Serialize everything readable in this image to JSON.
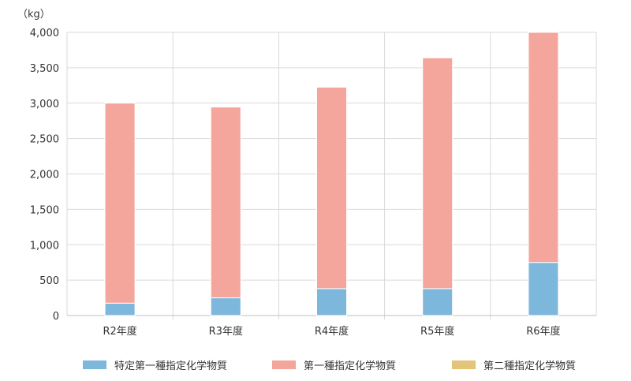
{
  "chart_data": {
    "type": "bar",
    "stacked": true,
    "unit_label": "（kg）",
    "categories": [
      "R2年度",
      "R3年度",
      "R4年度",
      "R5年度",
      "R6年度"
    ],
    "series": [
      {
        "name": "特定第一種指定化学物質",
        "color": "#7db7dc",
        "values": [
          175,
          250,
          380,
          380,
          750
        ]
      },
      {
        "name": "第一種指定化学物質",
        "color": "#f4a69c",
        "values": [
          2825,
          2695,
          2845,
          3260,
          3250
        ]
      },
      {
        "name": "第二種指定化学物質",
        "color": "#e3c47a",
        "values": [
          0,
          0,
          0,
          0,
          0
        ]
      }
    ],
    "yticks": [
      "0",
      "500",
      "1,000",
      "1,500",
      "2,000",
      "2,500",
      "3,000",
      "3,500",
      "4,000"
    ],
    "ylim": [
      0,
      4000
    ],
    "grid": true,
    "legend_position": "bottom"
  }
}
